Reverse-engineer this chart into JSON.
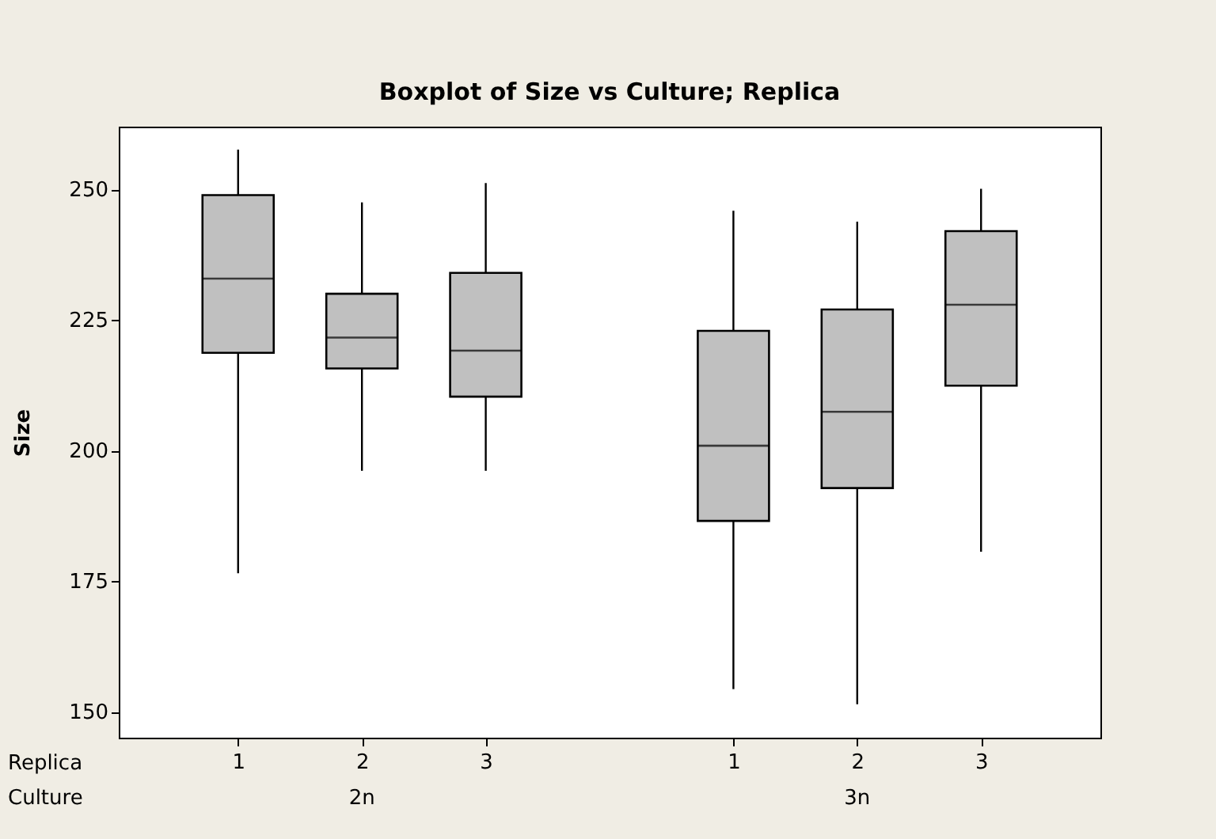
{
  "chart_data": {
    "type": "box",
    "title": "Boxplot of Size vs Culture; Replica",
    "ylabel": "Size",
    "categories": [
      "1",
      "2",
      "3",
      "1",
      "2",
      "3"
    ],
    "boxes": [
      {
        "low": 176.5,
        "q1": 218.7,
        "median": 232.9,
        "q3": 248.9,
        "high": 257.6
      },
      {
        "low": 196.1,
        "q1": 215.7,
        "median": 221.6,
        "q3": 230.0,
        "high": 247.5
      },
      {
        "low": 196.1,
        "q1": 210.3,
        "median": 219.1,
        "q3": 234.0,
        "high": 251.2
      },
      {
        "low": 154.3,
        "q1": 186.5,
        "median": 200.9,
        "q3": 222.9,
        "high": 245.9
      },
      {
        "low": 151.4,
        "q1": 192.8,
        "median": 207.4,
        "q3": 227.0,
        "high": 243.8
      },
      {
        "low": 180.6,
        "q1": 212.4,
        "median": 227.9,
        "q3": 242.0,
        "high": 250.1
      }
    ],
    "color": "#c0c0c0",
    "ylim": [
      145,
      262
    ],
    "yticks": [
      150,
      175,
      200,
      225,
      250
    ],
    "annotations": [
      "Replica",
      "Culture",
      "2n",
      "3n"
    ]
  }
}
